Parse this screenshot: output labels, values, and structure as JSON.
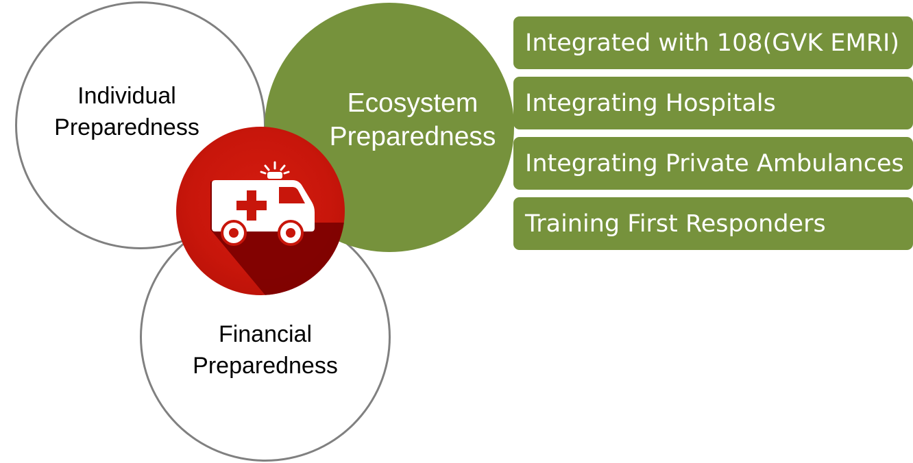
{
  "circles": {
    "individual": "Individual\nPreparedness",
    "financial": "Financial\nPreparedness",
    "ecosystem": "Ecosystem\nPreparedness"
  },
  "center_icon": "ambulance-icon",
  "ecosystem_items": [
    "Integrated with 108(GVK EMRI)",
    "Integrating Hospitals",
    "Integrating Private Ambulances",
    "Training First Responders"
  ],
  "colors": {
    "green": "#76923c",
    "red": "#c8160b",
    "circle_border": "#808080"
  }
}
